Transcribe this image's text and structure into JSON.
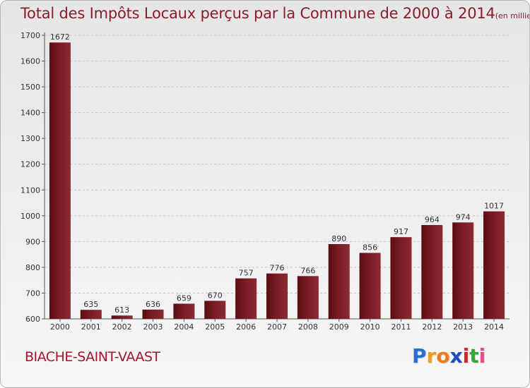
{
  "title": "Total des Impôts Locaux perçus par la Commune de 2000 à 2014",
  "title_unit": "(en milliers d'€)",
  "commune": "BIACHE-SAINT-VAAST",
  "logo": {
    "letters": [
      "P",
      "r",
      "o",
      "x",
      "i",
      "t",
      "i"
    ],
    "colors": [
      "#2a6fd0",
      "#f0a020",
      "#f07a1a",
      "#1e4fb8",
      "#e0202a",
      "#3aa43a",
      "#e84a8a"
    ]
  },
  "colors": {
    "bar": "#7a1a22",
    "title": "#8b1c2a"
  },
  "chart_data": {
    "type": "bar",
    "categories": [
      "2000",
      "2001",
      "2002",
      "2003",
      "2004",
      "2005",
      "2006",
      "2007",
      "2008",
      "2009",
      "2010",
      "2011",
      "2012",
      "2013",
      "2014"
    ],
    "values": [
      1672,
      635,
      613,
      636,
      659,
      670,
      757,
      776,
      766,
      890,
      856,
      917,
      964,
      974,
      1017
    ],
    "data_labels": [
      "1672",
      "635",
      "613",
      "636",
      "659",
      "670",
      "757",
      "776",
      "766",
      "890",
      "856",
      "917",
      "964",
      "974",
      "1017"
    ],
    "yticks": [
      600,
      700,
      800,
      900,
      1000,
      1100,
      1200,
      1300,
      1400,
      1500,
      1600,
      1700
    ],
    "ylim": [
      600,
      1700
    ],
    "grid": true
  }
}
